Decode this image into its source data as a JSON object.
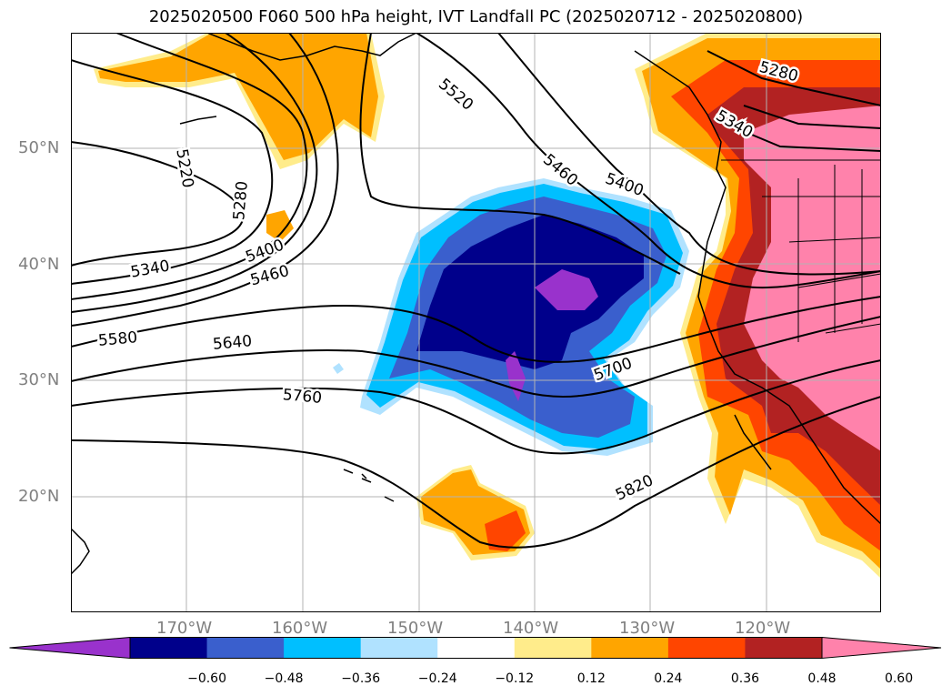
{
  "title": "2025020500 F060 500 hPa height, IVT Landfall PC (2025020712 - 2025020800)",
  "lat_labels": [
    "50°N",
    "40°N",
    "30°N",
    "20°N"
  ],
  "lon_labels": [
    "170°W",
    "160°W",
    "150°W",
    "140°W",
    "130°W",
    "120°W"
  ],
  "contour_labels": [
    "5220",
    "5280",
    "5340",
    "5400",
    "5460",
    "5520",
    "5580",
    "5640",
    "5700",
    "5760",
    "5820",
    "5280",
    "5340",
    "5400",
    "5460"
  ],
  "colorbar": {
    "ticks": [
      "−0.60",
      "−0.48",
      "−0.36",
      "−0.24",
      "−0.12",
      "0.12",
      "0.24",
      "0.36",
      "0.48",
      "0.60"
    ],
    "colors": [
      "#9932cc",
      "#00008b",
      "#3a5fcd",
      "#00bfff",
      "#b0e2ff",
      "#ffffff",
      "#ffec8b",
      "#ffa500",
      "#ff4500",
      "#b22222",
      "#ff82ab"
    ]
  }
}
